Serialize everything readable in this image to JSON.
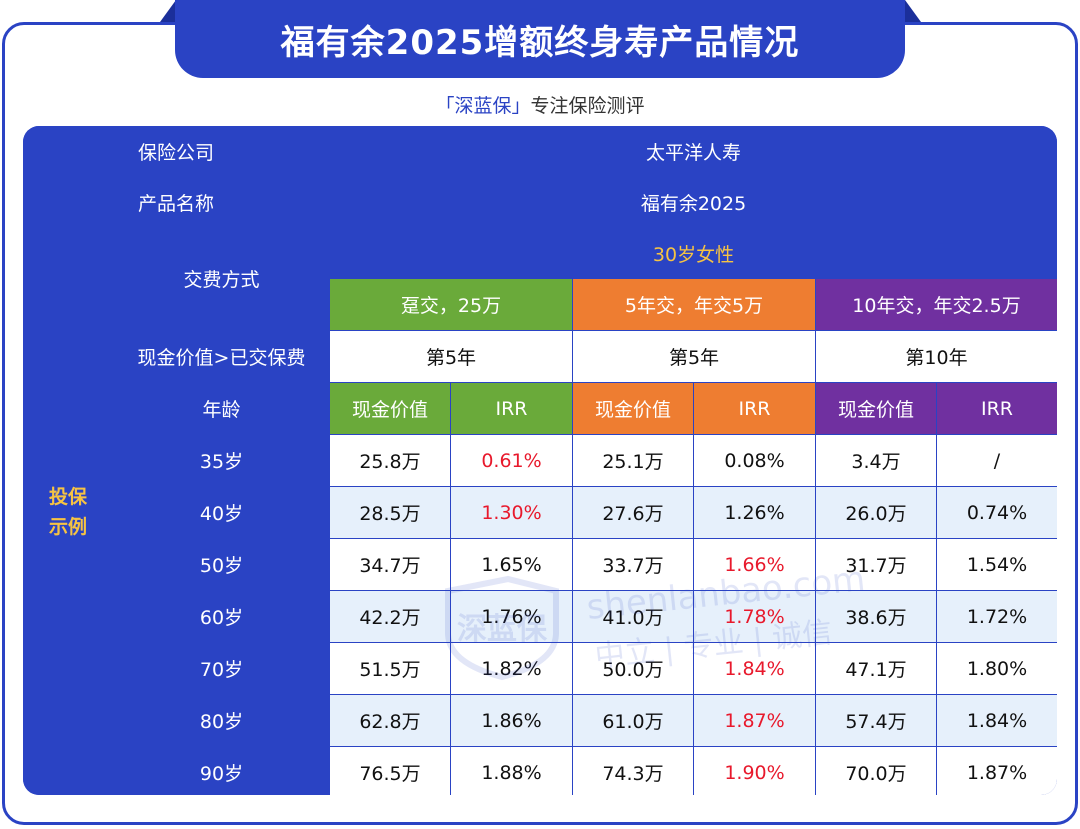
{
  "header": {
    "title": "福有余2025增额终身寿产品情况",
    "subtitle_brand": "「深蓝保」",
    "subtitle_rest": "专注保险测评"
  },
  "table": {
    "company_label": "保险公司",
    "company_value": "太平洋人寿",
    "product_label": "产品名称",
    "product_value": "福有余2025",
    "side_label_line1": "投保",
    "side_label_line2": "示例",
    "payment_label": "交费方式",
    "insured": "30岁女性",
    "plans": [
      {
        "name": "趸交，25万",
        "breakeven": "第5年"
      },
      {
        "name": "5年交，年交5万",
        "breakeven": "第5年"
      },
      {
        "name": "10年交，年交2.5万",
        "breakeven": "第10年"
      }
    ],
    "breakeven_label": "现金价值>已交保费",
    "age_label": "年龄",
    "col_cash": "现金价值",
    "col_irr": "IRR",
    "rows": [
      {
        "age": "35岁",
        "v": [
          "25.8万",
          "0.61%",
          "25.1万",
          "0.08%",
          "3.4万",
          "/"
        ],
        "red": [
          1
        ]
      },
      {
        "age": "40岁",
        "v": [
          "28.5万",
          "1.30%",
          "27.6万",
          "1.26%",
          "26.0万",
          "0.74%"
        ],
        "red": [
          1
        ]
      },
      {
        "age": "50岁",
        "v": [
          "34.7万",
          "1.65%",
          "33.7万",
          "1.66%",
          "31.7万",
          "1.54%"
        ],
        "red": [
          3
        ]
      },
      {
        "age": "60岁",
        "v": [
          "42.2万",
          "1.76%",
          "41.0万",
          "1.78%",
          "38.6万",
          "1.72%"
        ],
        "red": [
          3
        ]
      },
      {
        "age": "70岁",
        "v": [
          "51.5万",
          "1.82%",
          "50.0万",
          "1.84%",
          "47.1万",
          "1.80%"
        ],
        "red": [
          3
        ]
      },
      {
        "age": "80岁",
        "v": [
          "62.8万",
          "1.86%",
          "61.0万",
          "1.87%",
          "57.4万",
          "1.84%"
        ],
        "red": [
          3
        ]
      },
      {
        "age": "90岁",
        "v": [
          "76.5万",
          "1.88%",
          "74.3万",
          "1.90%",
          "70.0万",
          "1.87%"
        ],
        "red": [
          3
        ]
      }
    ]
  },
  "watermark": {
    "logo_text": "深蓝保",
    "line1": "shenlanbao.com",
    "line2": "中立 | 专业 | 诚信"
  },
  "colors": {
    "primary": "#2a43c4",
    "green": "#6aaa3a",
    "orange": "#ee7d31",
    "purple": "#7030a0",
    "highlight": "#e8192c",
    "gold": "#f6c343"
  }
}
